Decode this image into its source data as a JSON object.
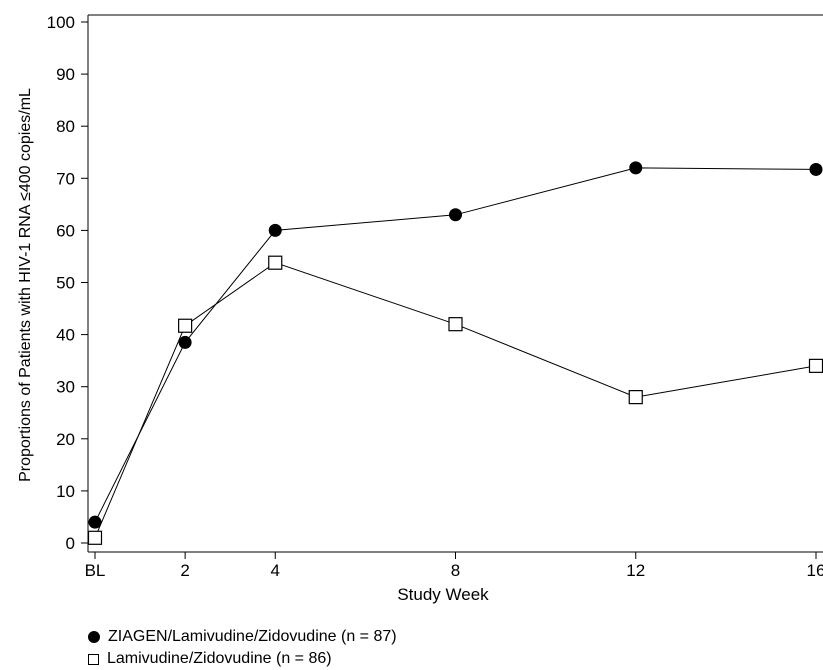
{
  "chart_data": {
    "type": "line",
    "title": "",
    "xlabel": "Study Week",
    "ylabel": "Proportions of Patients with HIV-1 RNA ≤400 copies/mL",
    "x": [
      0,
      2,
      4,
      8,
      12,
      16
    ],
    "x_tick_labels": [
      "BL",
      "2",
      "4",
      "8",
      "12",
      "16"
    ],
    "xlim": [
      0,
      16
    ],
    "ylim": [
      0,
      100
    ],
    "y_ticks": [
      0,
      10,
      20,
      30,
      40,
      50,
      60,
      70,
      80,
      90,
      100
    ],
    "grid": false,
    "legend_position": "bottom-left",
    "series": [
      {
        "name": "ZIAGEN/Lamivudine/Zidovudine (n = 87)",
        "marker": "filled-circle",
        "values": [
          4,
          38.5,
          60,
          63,
          72,
          71.7
        ]
      },
      {
        "name": "Lamivudine/Zidovudine (n = 86)",
        "marker": "open-square",
        "values": [
          1,
          41.7,
          53.8,
          42,
          28,
          34
        ]
      }
    ]
  }
}
